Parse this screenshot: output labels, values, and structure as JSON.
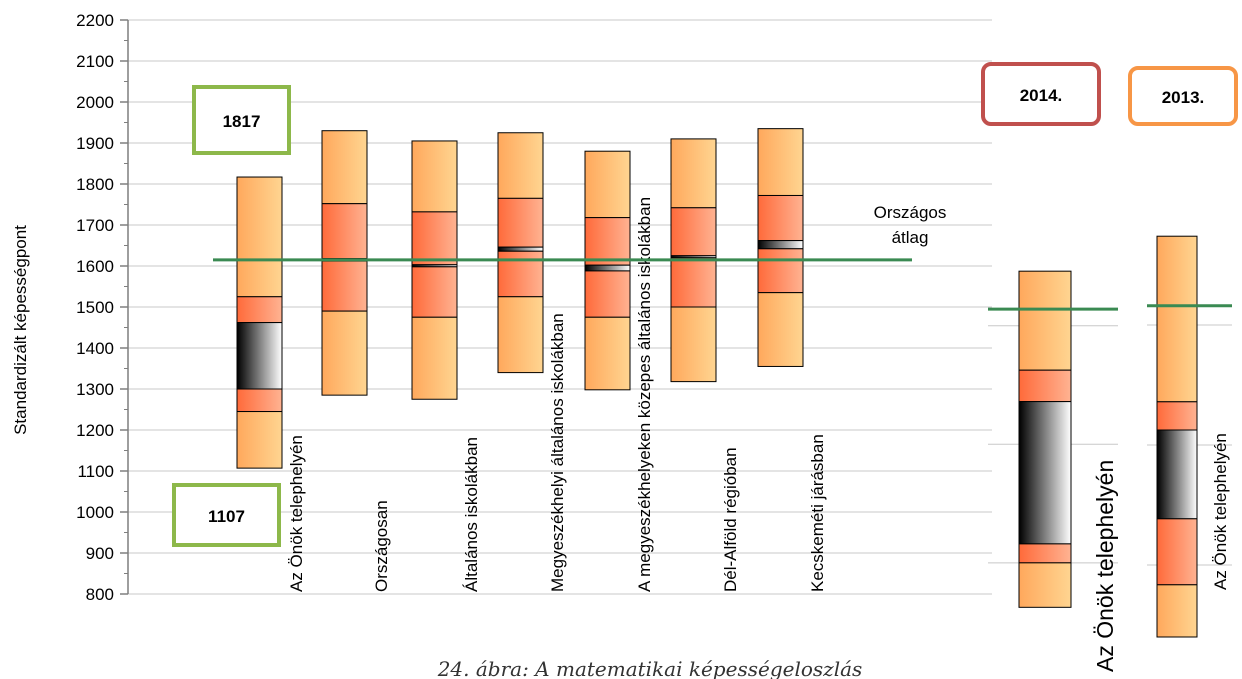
{
  "chart_data": [
    {
      "type": "box",
      "ylabel": "Standardizált képességpont",
      "ylim": [
        800,
        2200
      ],
      "yticks": [
        2200,
        2100,
        2000,
        1900,
        1800,
        1700,
        1600,
        1500,
        1400,
        1300,
        1200,
        1100,
        1000,
        900,
        800
      ],
      "categories": [
        "Az Önök telephelyén",
        "Országosan",
        "Általános iskolákban",
        "Megyeszékhelyi általános iskolákban",
        "A megyeszékhelyeken közepes általános iskolákban",
        "Dél-Alföld régióban",
        "Kecskeméti járásban"
      ],
      "series": [
        {
          "min": 1107,
          "p25": 1245,
          "ci_low": 1300,
          "ci_high": 1462,
          "p75": 1525,
          "max": 1817,
          "p50_low": 1245,
          "p50_high": 1525
        },
        {
          "min": 1285,
          "p25": 1490,
          "ci_low": 1612,
          "ci_high": 1618,
          "p75": 1752,
          "max": 1930
        },
        {
          "min": 1275,
          "p25": 1475,
          "ci_low": 1598,
          "ci_high": 1603,
          "p75": 1732,
          "max": 1905
        },
        {
          "min": 1340,
          "p25": 1525,
          "ci_low": 1636,
          "ci_high": 1646,
          "p75": 1765,
          "max": 1925
        },
        {
          "min": 1298,
          "p25": 1475,
          "ci_low": 1588,
          "ci_high": 1602,
          "p75": 1718,
          "max": 1880
        },
        {
          "min": 1318,
          "p25": 1500,
          "ci_low": 1620,
          "ci_high": 1625,
          "p75": 1742,
          "max": 1910
        },
        {
          "min": 1355,
          "p25": 1535,
          "ci_low": 1642,
          "ci_high": 1662,
          "p75": 1772,
          "max": 1935
        }
      ],
      "reference_line": {
        "label_line1": "Országos",
        "label_line2": "átlag",
        "value": 1615,
        "color": "#3a8a52"
      },
      "callouts": [
        {
          "text": "1817",
          "color": "#8db84a"
        },
        {
          "text": "1107",
          "color": "#8db84a"
        }
      ],
      "caption": "24. ábra: A matematikai képességeloszlás"
    },
    {
      "type": "box",
      "year_label": "2014.",
      "year_label_color": "#c0504d",
      "category": "Az Önök telephelyén",
      "ylim": [
        800,
        2200
      ],
      "series": [
        {
          "min": 1125,
          "p25": 1200,
          "ci_low": 1232,
          "ci_high": 1472,
          "p75": 1525,
          "max": 1692
        }
      ],
      "reference_value": 1628
    },
    {
      "type": "box",
      "year_label": "2013.",
      "year_label_color": "#f79646",
      "category": "Az Önök telephelyén",
      "ylim": [
        800,
        2200
      ],
      "series": [
        {
          "min": 1080,
          "p25": 1167,
          "ci_low": 1277,
          "ci_high": 1425,
          "p75": 1472,
          "max": 1748
        }
      ],
      "reference_value": 1632
    }
  ],
  "colors": {
    "outer": "#ffbf6e",
    "inner": "#ff7a45",
    "median": "#000000",
    "axis": "#7f7f7f",
    "grid": "#c8c8c8",
    "ref_line": "#3a8a52"
  }
}
